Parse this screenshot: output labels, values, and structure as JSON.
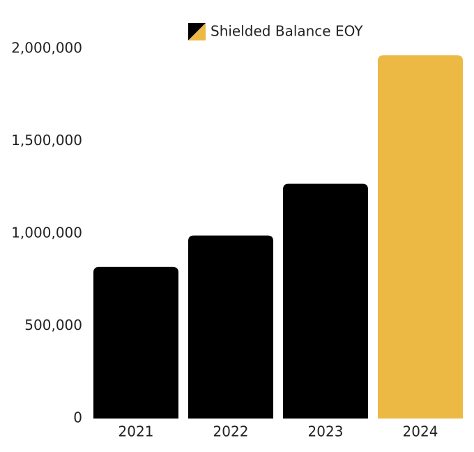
{
  "chart_data": {
    "type": "bar",
    "categories": [
      "2021",
      "2022",
      "2023",
      "2024"
    ],
    "series": [
      {
        "name": "Shielded Balance EOY",
        "colors": [
          "#000000",
          "#000000",
          "#000000",
          "#ecb944"
        ],
        "values": [
          820000,
          990000,
          1270000,
          1965000
        ]
      }
    ],
    "ylim": [
      0,
      2000000
    ],
    "yticks": [
      0,
      {
        "value": 500000,
        "label": "500,000"
      },
      {
        "value": 1000000,
        "label": "1,000,000"
      },
      {
        "value": 1500000,
        "label": "1,500,000"
      },
      {
        "value": 2000000,
        "label": "2,000,000"
      }
    ],
    "grid": false
  }
}
